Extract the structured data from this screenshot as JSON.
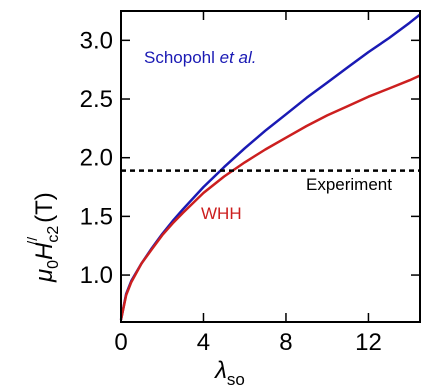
{
  "chart_data": {
    "type": "line",
    "xlim": [
      0,
      14.5
    ],
    "ylim": [
      0.6,
      3.25
    ],
    "x_ticks": [
      0,
      4,
      8,
      12
    ],
    "x_tick_labels": [
      "0",
      "4",
      "8",
      "12"
    ],
    "y_ticks": [
      1.0,
      1.5,
      2.0,
      2.5,
      3.0
    ],
    "y_tick_labels": [
      "1.0",
      "1.5",
      "2.0",
      "2.5",
      "3.0"
    ],
    "xlabel": {
      "symbol": "λ",
      "subscript": "so"
    },
    "ylabel": {
      "prefix": "(T)",
      "symbol": "μ",
      "sub0": "0",
      "H": "H",
      "subc2": "c2",
      "sup": "//"
    },
    "grid": false,
    "series": [
      {
        "name": "Schopohl et al.",
        "label_main": "Schopohl ",
        "label_italic": "et al.",
        "color": "#1a1ab4",
        "x": [
          0,
          0.25,
          0.5,
          1,
          1.5,
          2,
          2.5,
          3,
          4,
          5,
          6,
          7,
          8,
          9,
          10,
          11,
          12,
          13,
          14,
          14.5
        ],
        "y": [
          0.62,
          0.84,
          0.95,
          1.1,
          1.23,
          1.35,
          1.46,
          1.56,
          1.75,
          1.92,
          2.08,
          2.23,
          2.37,
          2.51,
          2.64,
          2.77,
          2.9,
          3.02,
          3.15,
          3.22
        ]
      },
      {
        "name": "WHH",
        "label_main": "WHH",
        "color": "#cc1f1f",
        "x": [
          0,
          0.25,
          0.5,
          1,
          1.5,
          2,
          2.5,
          3,
          4,
          5,
          6,
          7,
          8,
          9,
          10,
          11,
          12,
          13,
          14,
          14.5
        ],
        "y": [
          0.62,
          0.83,
          0.94,
          1.1,
          1.22,
          1.34,
          1.44,
          1.53,
          1.7,
          1.84,
          1.96,
          2.07,
          2.17,
          2.27,
          2.36,
          2.44,
          2.52,
          2.59,
          2.66,
          2.7
        ]
      }
    ],
    "reference_line": {
      "label": "Experiment",
      "y": 1.89,
      "style": "dashed",
      "color": "#000000"
    }
  }
}
